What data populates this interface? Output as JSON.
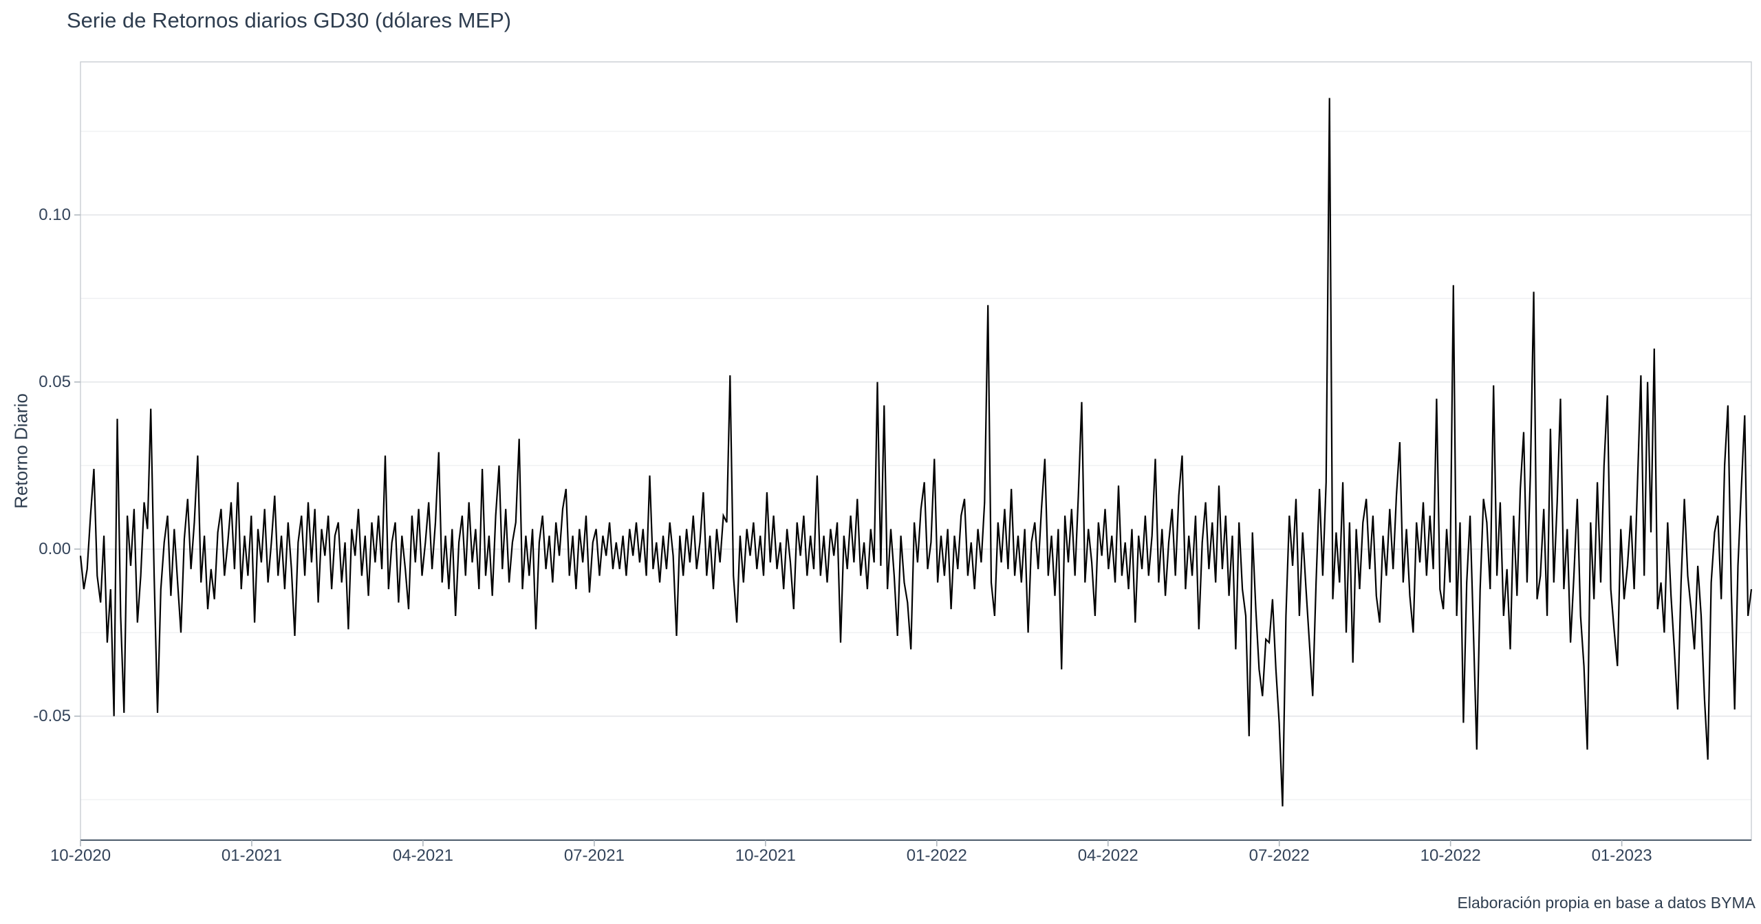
{
  "chart_data": {
    "type": "line",
    "title": "Serie de Retornos diarios GD30 (dólares MEP)",
    "ylabel": "Retorno Diario",
    "caption": "Elaboración propia en base a datos BYMA",
    "grid": "horizontal-only",
    "legend": "none",
    "x_axis": {
      "tick_labels": [
        "10-2020",
        "01-2021",
        "04-2021",
        "07-2021",
        "10-2021",
        "01-2022",
        "04-2022",
        "07-2022",
        "10-2022",
        "01-2023"
      ],
      "tick_month_offsets": [
        0,
        3,
        6,
        9,
        12,
        15,
        18,
        21,
        24,
        27
      ],
      "total_months": 29.27,
      "start": "10-2020",
      "end": "03-2023"
    },
    "y_axis": {
      "major_ticks": [
        0.1,
        0.05,
        0.0,
        -0.05
      ],
      "major_tick_labels": [
        "0.10",
        "0.05",
        "0.00",
        "-0.05"
      ],
      "minor_ticks": [
        0.125,
        0.075,
        0.025,
        -0.025,
        -0.075
      ],
      "ylim": [
        -0.0871,
        0.1458
      ]
    },
    "series": [
      {
        "name": "Retorno diario GD30 (dólares MEP)",
        "color": "#000000",
        "n_points": 500,
        "values": [
          -0.002,
          -0.012,
          -0.006,
          0.01,
          0.024,
          -0.008,
          -0.016,
          0.004,
          -0.028,
          -0.012,
          -0.05,
          0.039,
          -0.02,
          -0.049,
          0.01,
          -0.005,
          0.012,
          -0.022,
          -0.008,
          0.014,
          0.006,
          0.042,
          -0.008,
          -0.049,
          -0.012,
          0.002,
          0.01,
          -0.014,
          0.006,
          -0.01,
          -0.025,
          0.003,
          0.015,
          -0.006,
          0.008,
          0.028,
          -0.01,
          0.004,
          -0.018,
          -0.006,
          -0.015,
          0.005,
          0.012,
          -0.008,
          0.002,
          0.014,
          -0.006,
          0.02,
          -0.012,
          0.004,
          -0.008,
          0.01,
          -0.022,
          0.006,
          -0.004,
          0.012,
          -0.01,
          0.002,
          0.016,
          -0.008,
          0.004,
          -0.012,
          0.008,
          -0.006,
          -0.026,
          0.002,
          0.01,
          -0.008,
          0.014,
          -0.004,
          0.012,
          -0.016,
          0.006,
          -0.002,
          0.01,
          -0.012,
          0.004,
          0.008,
          -0.01,
          0.002,
          -0.024,
          0.006,
          -0.002,
          0.012,
          -0.008,
          0.004,
          -0.014,
          0.008,
          -0.004,
          0.01,
          -0.006,
          0.028,
          -0.012,
          0.002,
          0.008,
          -0.016,
          0.004,
          -0.006,
          -0.018,
          0.01,
          -0.004,
          0.012,
          -0.008,
          0.002,
          0.014,
          -0.006,
          0.008,
          0.029,
          -0.01,
          0.004,
          -0.012,
          0.006,
          -0.02,
          0.002,
          0.01,
          -0.008,
          0.014,
          -0.004,
          0.006,
          -0.012,
          0.024,
          -0.008,
          0.004,
          -0.014,
          0.01,
          0.025,
          -0.006,
          0.012,
          -0.01,
          0.002,
          0.008,
          0.033,
          -0.012,
          0.004,
          -0.008,
          0.006,
          -0.024,
          0.002,
          0.01,
          -0.006,
          0.004,
          -0.01,
          0.008,
          -0.002,
          0.012,
          0.018,
          -0.008,
          0.004,
          -0.012,
          0.006,
          -0.004,
          0.01,
          -0.013,
          0.002,
          0.006,
          -0.008,
          0.004,
          -0.002,
          0.008,
          -0.006,
          0.002,
          -0.006,
          0.004,
          -0.008,
          0.006,
          -0.002,
          0.008,
          -0.004,
          0.006,
          -0.008,
          0.022,
          -0.006,
          0.002,
          -0.01,
          0.004,
          -0.006,
          0.008,
          -0.002,
          -0.026,
          0.004,
          -0.008,
          0.006,
          -0.004,
          0.01,
          -0.006,
          0.002,
          0.017,
          -0.008,
          0.004,
          -0.012,
          0.006,
          -0.004,
          0.01,
          0.008,
          0.052,
          -0.008,
          -0.022,
          0.004,
          -0.01,
          0.006,
          -0.002,
          0.008,
          -0.006,
          0.004,
          -0.008,
          0.017,
          -0.004,
          0.01,
          -0.006,
          0.002,
          -0.012,
          0.006,
          -0.004,
          -0.018,
          0.008,
          -0.002,
          0.01,
          -0.008,
          0.004,
          -0.006,
          0.022,
          -0.008,
          0.004,
          -0.01,
          0.006,
          -0.002,
          0.008,
          -0.028,
          0.004,
          -0.006,
          0.01,
          -0.004,
          0.015,
          -0.008,
          0.002,
          -0.012,
          0.006,
          -0.004,
          0.05,
          -0.005,
          0.043,
          -0.012,
          0.006,
          -0.008,
          -0.026,
          0.004,
          -0.01,
          -0.016,
          -0.03,
          0.008,
          -0.004,
          0.012,
          0.02,
          -0.006,
          0.002,
          0.027,
          -0.01,
          0.004,
          -0.008,
          0.006,
          -0.018,
          0.004,
          -0.006,
          0.01,
          0.015,
          -0.008,
          0.002,
          -0.012,
          0.006,
          -0.004,
          0.014,
          0.073,
          -0.01,
          -0.02,
          0.008,
          -0.004,
          0.012,
          -0.006,
          0.018,
          -0.008,
          0.004,
          -0.01,
          0.006,
          -0.025,
          0.002,
          0.008,
          -0.006,
          0.012,
          0.027,
          -0.008,
          0.004,
          -0.014,
          0.006,
          -0.036,
          0.01,
          -0.004,
          0.012,
          -0.008,
          0.016,
          0.044,
          -0.01,
          0.006,
          -0.004,
          -0.02,
          0.008,
          -0.002,
          0.012,
          -0.006,
          0.004,
          -0.01,
          0.019,
          -0.008,
          0.002,
          -0.012,
          0.006,
          -0.022,
          0.004,
          -0.006,
          0.01,
          -0.008,
          0.004,
          0.027,
          -0.01,
          0.006,
          -0.014,
          0.002,
          0.012,
          -0.008,
          0.016,
          0.028,
          -0.012,
          0.004,
          -0.008,
          0.01,
          -0.024,
          0.002,
          0.014,
          -0.006,
          0.008,
          -0.01,
          0.019,
          -0.006,
          0.01,
          -0.014,
          0.004,
          -0.03,
          0.008,
          -0.012,
          -0.02,
          -0.056,
          0.005,
          -0.018,
          -0.036,
          -0.044,
          -0.027,
          -0.028,
          -0.015,
          -0.036,
          -0.052,
          -0.077,
          -0.02,
          0.01,
          -0.005,
          0.015,
          -0.02,
          0.005,
          -0.012,
          -0.028,
          -0.044,
          -0.01,
          0.018,
          -0.008,
          0.02,
          0.135,
          -0.015,
          0.005,
          -0.01,
          0.02,
          -0.025,
          0.008,
          -0.034,
          0.006,
          -0.012,
          0.008,
          0.015,
          -0.006,
          0.01,
          -0.014,
          -0.022,
          0.004,
          -0.008,
          0.012,
          -0.006,
          0.016,
          0.032,
          -0.01,
          0.006,
          -0.014,
          -0.025,
          0.008,
          -0.004,
          0.014,
          -0.008,
          0.01,
          -0.006,
          0.045,
          -0.012,
          -0.018,
          0.006,
          -0.01,
          0.079,
          -0.02,
          0.008,
          -0.052,
          -0.01,
          0.01,
          -0.025,
          -0.06,
          -0.012,
          0.015,
          0.008,
          -0.012,
          0.049,
          -0.008,
          0.014,
          -0.02,
          -0.006,
          -0.03,
          0.01,
          -0.014,
          0.018,
          0.035,
          -0.01,
          0.022,
          0.077,
          -0.015,
          -0.008,
          0.012,
          -0.02,
          0.036,
          -0.01,
          0.014,
          0.045,
          -0.012,
          0.006,
          -0.028,
          -0.008,
          0.015,
          -0.02,
          -0.035,
          -0.06,
          0.008,
          -0.015,
          0.02,
          -0.01,
          0.025,
          0.046,
          -0.012,
          -0.024,
          -0.035,
          0.006,
          -0.015,
          -0.005,
          0.01,
          -0.012,
          0.02,
          0.052,
          -0.008,
          0.05,
          0.005,
          0.06,
          -0.018,
          -0.01,
          -0.025,
          0.008,
          -0.014,
          -0.03,
          -0.048,
          -0.01,
          0.015,
          -0.008,
          -0.018,
          -0.03,
          -0.005,
          -0.02,
          -0.045,
          -0.063,
          -0.01,
          0.005,
          0.01,
          -0.015,
          0.025,
          0.043,
          -0.012,
          -0.048,
          -0.005,
          0.018,
          0.04,
          -0.02,
          -0.012
        ]
      }
    ]
  },
  "colors": {
    "text": "#2e3d4f",
    "tick_text": "#34445a",
    "grid_major": "#e3e5e8",
    "grid_minor": "#eff0f2",
    "panel_border": "#c9ced3",
    "axis_line": "#4b5a6b",
    "tick_mark": "#aeb6bd",
    "line": "#000000",
    "background": "#ffffff"
  }
}
